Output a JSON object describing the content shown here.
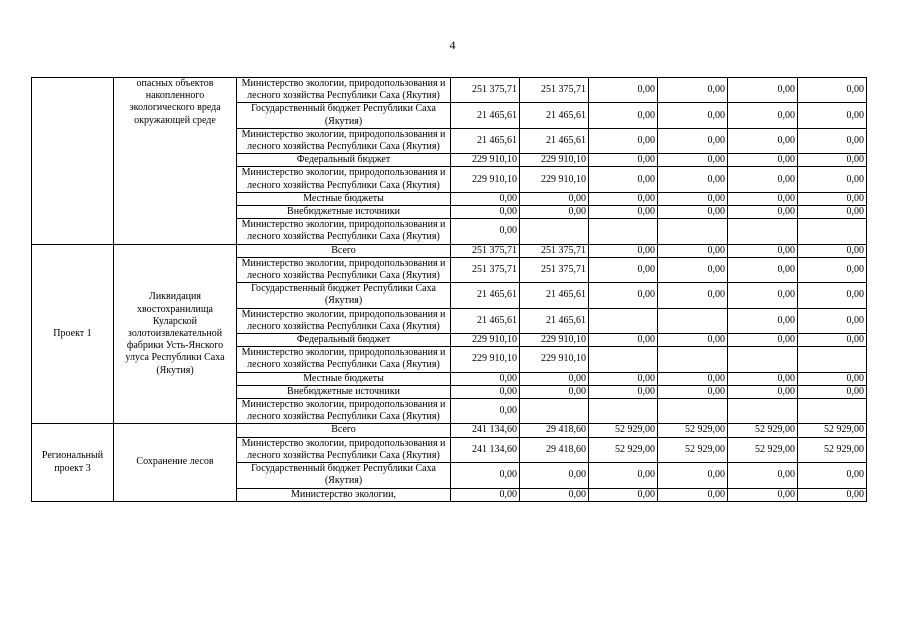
{
  "page_number": "4",
  "sections": [
    {
      "col1": "",
      "col2": "опасных объектов накопленного экологического вреда окружающей среде",
      "rows": [
        {
          "source": "Министерство экологии, природопользования и лесного хозяйства Республики Саха (Якутия)",
          "values": [
            "251 375,71",
            "251 375,71",
            "0,00",
            "0,00",
            "0,00",
            "0,00"
          ]
        },
        {
          "source": "Государственный бюджет Республики Саха (Якутия)",
          "values": [
            "21 465,61",
            "21 465,61",
            "0,00",
            "0,00",
            "0,00",
            "0,00"
          ]
        },
        {
          "source": "Министерство экологии, природопользования и лесного хозяйства Республики Саха (Якутия)",
          "values": [
            "21 465,61",
            "21 465,61",
            "0,00",
            "0,00",
            "0,00",
            "0,00"
          ]
        },
        {
          "source": "Федеральный бюджет",
          "values": [
            "229 910,10",
            "229 910,10",
            "0,00",
            "0,00",
            "0,00",
            "0,00"
          ]
        },
        {
          "source": "Министерство экологии, природопользования и лесного хозяйства Республики Саха (Якутия)",
          "values": [
            "229 910,10",
            "229 910,10",
            "0,00",
            "0,00",
            "0,00",
            "0,00"
          ]
        },
        {
          "source": "Местные бюджеты",
          "values": [
            "0,00",
            "0,00",
            "0,00",
            "0,00",
            "0,00",
            "0,00"
          ]
        },
        {
          "source": "Внебюджетные источники",
          "values": [
            "0,00",
            "0,00",
            "0,00",
            "0,00",
            "0,00",
            "0,00"
          ]
        },
        {
          "source": "Министерство экологии, природопользования и лесного хозяйства Республики Саха (Якутия)",
          "values": [
            "0,00",
            "",
            "",
            "",
            "",
            ""
          ]
        }
      ]
    },
    {
      "col1": "Проект 1",
      "col2": "Ликвидация хвостохранилища Куларской золотоизвлекательной фабрики Усть-Янского улуса Республики Саха (Якутия)",
      "rows": [
        {
          "source": "Всего",
          "values": [
            "251 375,71",
            "251 375,71",
            "0,00",
            "0,00",
            "0,00",
            "0,00"
          ]
        },
        {
          "source": "Министерство экологии, природопользования и лесного хозяйства Республики Саха (Якутия)",
          "values": [
            "251 375,71",
            "251 375,71",
            "0,00",
            "0,00",
            "0,00",
            "0,00"
          ]
        },
        {
          "source": "Государственный бюджет Республики Саха (Якутия)",
          "values": [
            "21 465,61",
            "21 465,61",
            "0,00",
            "0,00",
            "0,00",
            "0,00"
          ]
        },
        {
          "source": "Министерство экологии, природопользования и лесного хозяйства Республики Саха (Якутия)",
          "values": [
            "21 465,61",
            "21 465,61",
            "",
            "",
            "0,00",
            "0,00"
          ]
        },
        {
          "source": "Федеральный бюджет",
          "values": [
            "229 910,10",
            "229 910,10",
            "0,00",
            "0,00",
            "0,00",
            "0,00"
          ]
        },
        {
          "source": "Министерство экологии, природопользования и лесного хозяйства Республики Саха (Якутия)",
          "values": [
            "229 910,10",
            "229 910,10",
            "",
            "",
            "",
            ""
          ]
        },
        {
          "source": "Местные бюджеты",
          "values": [
            "0,00",
            "0,00",
            "0,00",
            "0,00",
            "0,00",
            "0,00"
          ]
        },
        {
          "source": "Внебюджетные источники",
          "values": [
            "0,00",
            "0,00",
            "0,00",
            "0,00",
            "0,00",
            "0,00"
          ]
        },
        {
          "source": "Министерство экологии, природопользования и лесного хозяйства Республики Саха (Якутия)",
          "values": [
            "0,00",
            "",
            "",
            "",
            "",
            ""
          ]
        }
      ]
    },
    {
      "col1": "Региональный проект 3",
      "col2": "Сохранение лесов",
      "rows": [
        {
          "source": "Всего",
          "values": [
            "241 134,60",
            "29 418,60",
            "52 929,00",
            "52 929,00",
            "52 929,00",
            "52 929,00"
          ]
        },
        {
          "source": "Министерство экологии, природопользования и лесного хозяйства Республики Саха (Якутия)",
          "values": [
            "241 134,60",
            "29 418,60",
            "52 929,00",
            "52 929,00",
            "52 929,00",
            "52 929,00"
          ]
        },
        {
          "source": "Государственный бюджет Республики Саха (Якутия)",
          "values": [
            "0,00",
            "0,00",
            "0,00",
            "0,00",
            "0,00",
            "0,00"
          ]
        },
        {
          "source": "Министерство экологии,",
          "values": [
            "0,00",
            "0,00",
            "0,00",
            "0,00",
            "0,00",
            "0,00"
          ]
        }
      ]
    }
  ]
}
